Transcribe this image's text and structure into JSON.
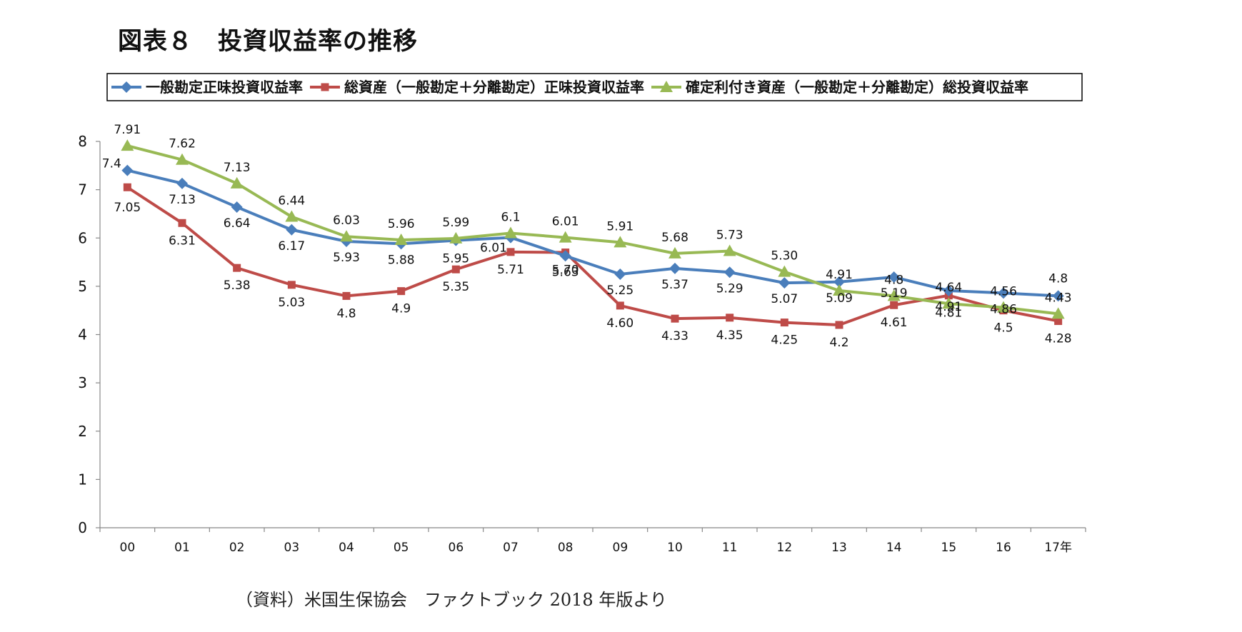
{
  "header": {
    "title": "図表８　投資収益率の推移"
  },
  "footer": {
    "source": "（資料）米国生保協会　ファクトブック 2018 年版より"
  },
  "chart_data": {
    "type": "line",
    "categories": [
      "00",
      "01",
      "02",
      "03",
      "04",
      "05",
      "06",
      "07",
      "08",
      "09",
      "10",
      "11",
      "12",
      "13",
      "14",
      "15",
      "16",
      "17年"
    ],
    "ylim": [
      0,
      8
    ],
    "yticks": [
      "0",
      "1",
      "2",
      "3",
      "4",
      "5",
      "6",
      "7",
      "8"
    ],
    "grid": false,
    "legend_position": "top",
    "series": [
      {
        "name": "一般勘定正味投資収益率",
        "color": "#4a7ebb",
        "marker": "diamond",
        "values": [
          7.4,
          7.13,
          6.64,
          6.17,
          5.93,
          5.88,
          5.95,
          6.01,
          5.63,
          5.25,
          5.37,
          5.29,
          5.07,
          5.09,
          5.19,
          4.91,
          4.86,
          4.8
        ],
        "labels": [
          "7.4",
          "7.13",
          "6.64",
          "6.17",
          "5.93",
          "5.88",
          "5.95",
          "6.01",
          "5.63",
          "5.25",
          "5.37",
          "5.29",
          "5.07",
          "5.09",
          "5.19",
          "4.91",
          "4.86",
          "4.8"
        ]
      },
      {
        "name": "総資産（一般勘定＋分離勘定）正味投資収益率",
        "color": "#be4b48",
        "marker": "square",
        "values": [
          7.05,
          6.31,
          5.38,
          5.03,
          4.8,
          4.9,
          5.35,
          5.71,
          5.7,
          4.6,
          4.33,
          4.35,
          4.25,
          4.2,
          4.61,
          4.81,
          4.5,
          4.28
        ],
        "labels": [
          "7.05",
          "6.31",
          "5.38",
          "5.03",
          "4.8",
          "4.9",
          "5.35",
          "5.71",
          "5.70",
          "4.60",
          "4.33",
          "4.35",
          "4.25",
          "4.2",
          "4.61",
          "4.81",
          "4.5",
          "4.28"
        ]
      },
      {
        "name": "確定利付き資産（一般勘定＋分離勘定）総投資収益率",
        "color": "#98b954",
        "marker": "triangle",
        "values": [
          7.91,
          7.62,
          7.13,
          6.44,
          6.03,
          5.96,
          5.99,
          6.1,
          6.01,
          5.91,
          5.68,
          5.73,
          5.3,
          4.91,
          4.8,
          4.64,
          4.56,
          4.43
        ],
        "labels": [
          "7.91",
          "7.62",
          "7.13",
          "6.44",
          "6.03",
          "5.96",
          "5.99",
          "6.1",
          "6.01",
          "5.91",
          "5.68",
          "5.73",
          "5.30",
          "4.91",
          "4.8",
          "4.64",
          "4.56",
          "4.43"
        ]
      }
    ]
  }
}
